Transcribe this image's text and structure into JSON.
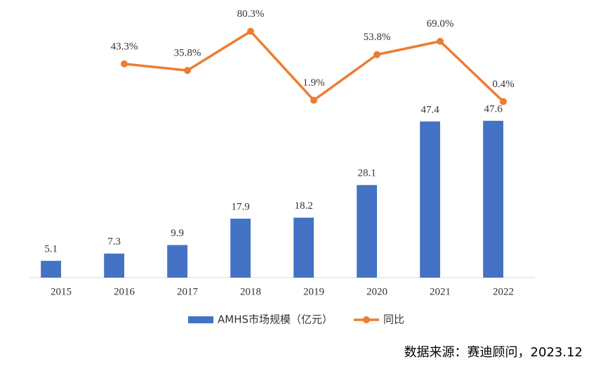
{
  "chart_data": {
    "type": "bar_line",
    "categories": [
      "2015",
      "2016",
      "2017",
      "2018",
      "2019",
      "2020",
      "2021",
      "2022"
    ],
    "series": [
      {
        "name": "AMHS市场规模（亿元）",
        "type": "bar",
        "color": "#4472c4",
        "values": [
          5.1,
          7.3,
          9.9,
          17.9,
          18.2,
          28.1,
          47.4,
          47.6
        ]
      },
      {
        "name": "同比",
        "type": "line",
        "axis": "y2",
        "color": "#ed7d31",
        "values": [
          null,
          43.3,
          35.8,
          80.3,
          1.9,
          53.8,
          69.0,
          0.4
        ],
        "value_labels": [
          null,
          "43.3%",
          "35.8%",
          "80.3%",
          "1.9%",
          "53.8%",
          "69.0%",
          "0.4%"
        ]
      }
    ],
    "ylim": [
      0,
      80
    ],
    "y2lim": [
      -200,
      100
    ],
    "legend": "bottom",
    "source": "数据来源：赛迪顾问，2023.12"
  }
}
